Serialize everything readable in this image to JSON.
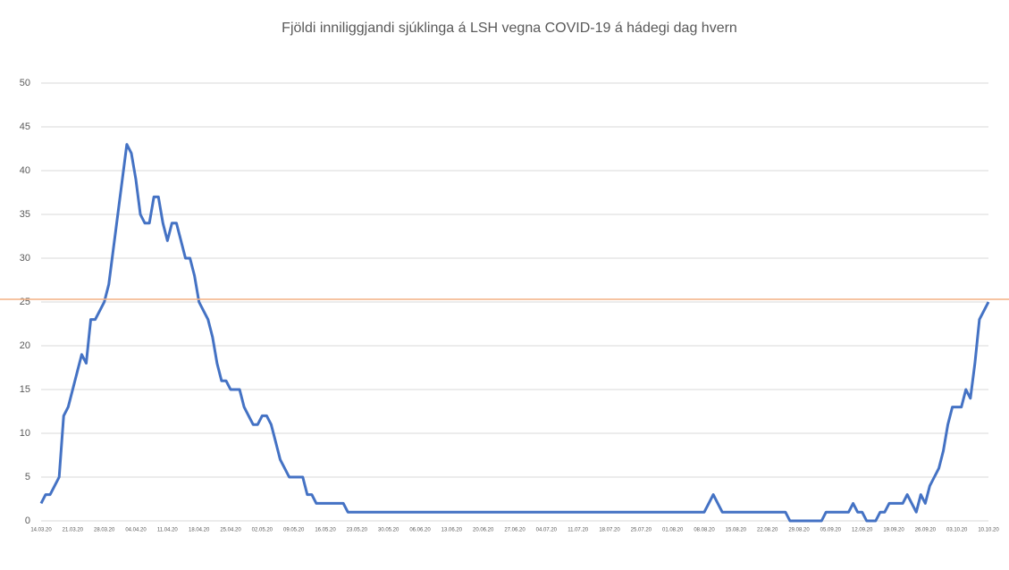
{
  "chart_data": {
    "type": "line",
    "title": "Fjöldi inniliggjandi sjúklinga á LSH vegna COVID-19 á hádegi dag hvern",
    "categories": [
      "14.03.20",
      null,
      null,
      null,
      null,
      null,
      null,
      "21.03.20",
      null,
      null,
      null,
      null,
      null,
      null,
      "28.03.20",
      null,
      null,
      null,
      null,
      null,
      null,
      "04.04.20",
      null,
      null,
      null,
      null,
      null,
      null,
      "11.04.20",
      null,
      null,
      null,
      null,
      null,
      null,
      "18.04.20",
      null,
      null,
      null,
      null,
      null,
      null,
      "25.04.20",
      null,
      null,
      null,
      null,
      null,
      null,
      "02.05.20",
      null,
      null,
      null,
      null,
      null,
      null,
      "09.05.20",
      null,
      null,
      null,
      null,
      null,
      null,
      "16.05.20",
      null,
      null,
      null,
      null,
      null,
      null,
      "23.05.20",
      null,
      null,
      null,
      null,
      null,
      null,
      "30.05.20",
      null,
      null,
      null,
      null,
      null,
      null,
      "06.06.20",
      null,
      null,
      null,
      null,
      null,
      null,
      "13.06.20",
      null,
      null,
      null,
      null,
      null,
      null,
      "20.06.20",
      null,
      null,
      null,
      null,
      null,
      null,
      "27.06.20",
      null,
      null,
      null,
      null,
      null,
      null,
      "04.07.20",
      null,
      null,
      null,
      null,
      null,
      null,
      "11.07.20",
      null,
      null,
      null,
      null,
      null,
      null,
      "18.07.20",
      null,
      null,
      null,
      null,
      null,
      null,
      "25.07.20",
      null,
      null,
      null,
      null,
      null,
      null,
      "01.08.20",
      null,
      null,
      null,
      null,
      null,
      null,
      "08.08.20",
      null,
      null,
      null,
      null,
      null,
      null,
      "15.08.20",
      null,
      null,
      null,
      null,
      null,
      null,
      "22.08.20",
      null,
      null,
      null,
      null,
      null,
      null,
      "29.08.20",
      null,
      null,
      null,
      null,
      null,
      null,
      "05.09.20",
      null,
      null,
      null,
      null,
      null,
      null,
      "12.09.20",
      null,
      null,
      null,
      null,
      null,
      null,
      "19.09.20",
      null,
      null,
      null,
      null,
      null,
      null,
      "26.09.20",
      null,
      null,
      null,
      null,
      null,
      null,
      "03.10.20",
      null,
      null,
      null,
      null,
      null,
      null,
      "10.10.20"
    ],
    "values": [
      2,
      3,
      3,
      4,
      5,
      12,
      13,
      15,
      17,
      19,
      18,
      23,
      23,
      24,
      25,
      27,
      31,
      35,
      39,
      43,
      42,
      39,
      35,
      34,
      34,
      37,
      37,
      34,
      32,
      34,
      34,
      32,
      30,
      30,
      28,
      25,
      24,
      23,
      21,
      18,
      16,
      16,
      15,
      15,
      15,
      13,
      12,
      11,
      11,
      12,
      12,
      11,
      9,
      7,
      6,
      5,
      5,
      5,
      5,
      3,
      3,
      2,
      2,
      2,
      2,
      2,
      2,
      2,
      1,
      1,
      1,
      1,
      1,
      1,
      1,
      1,
      1,
      1,
      1,
      1,
      1,
      1,
      1,
      1,
      1,
      1,
      1,
      1,
      1,
      1,
      1,
      1,
      1,
      1,
      1,
      1,
      1,
      1,
      1,
      1,
      1,
      1,
      1,
      1,
      1,
      1,
      1,
      1,
      1,
      1,
      1,
      1,
      1,
      1,
      1,
      1,
      1,
      1,
      1,
      1,
      1,
      1,
      1,
      1,
      1,
      1,
      1,
      1,
      1,
      1,
      1,
      1,
      1,
      1,
      1,
      1,
      1,
      1,
      1,
      1,
      1,
      1,
      1,
      1,
      1,
      1,
      1,
      1,
      2,
      3,
      2,
      1,
      1,
      1,
      1,
      1,
      1,
      1,
      1,
      1,
      1,
      1,
      1,
      1,
      1,
      1,
      0,
      0,
      0,
      0,
      0,
      0,
      0,
      0,
      1,
      1,
      1,
      1,
      1,
      1,
      2,
      1,
      1,
      0,
      0,
      0,
      1,
      1,
      2,
      2,
      2,
      2,
      3,
      2,
      1,
      3,
      2,
      4,
      5,
      6,
      8,
      11,
      13,
      13,
      13,
      15,
      14,
      18,
      23,
      24,
      25
    ],
    "color": "#4472c4",
    "ylim": [
      0,
      50
    ],
    "yticks": [
      0,
      5,
      10,
      15,
      20,
      25,
      30,
      35,
      40,
      45,
      50
    ],
    "grid": true,
    "reference_line": {
      "value": 25.3,
      "color": "#f4b183"
    }
  }
}
